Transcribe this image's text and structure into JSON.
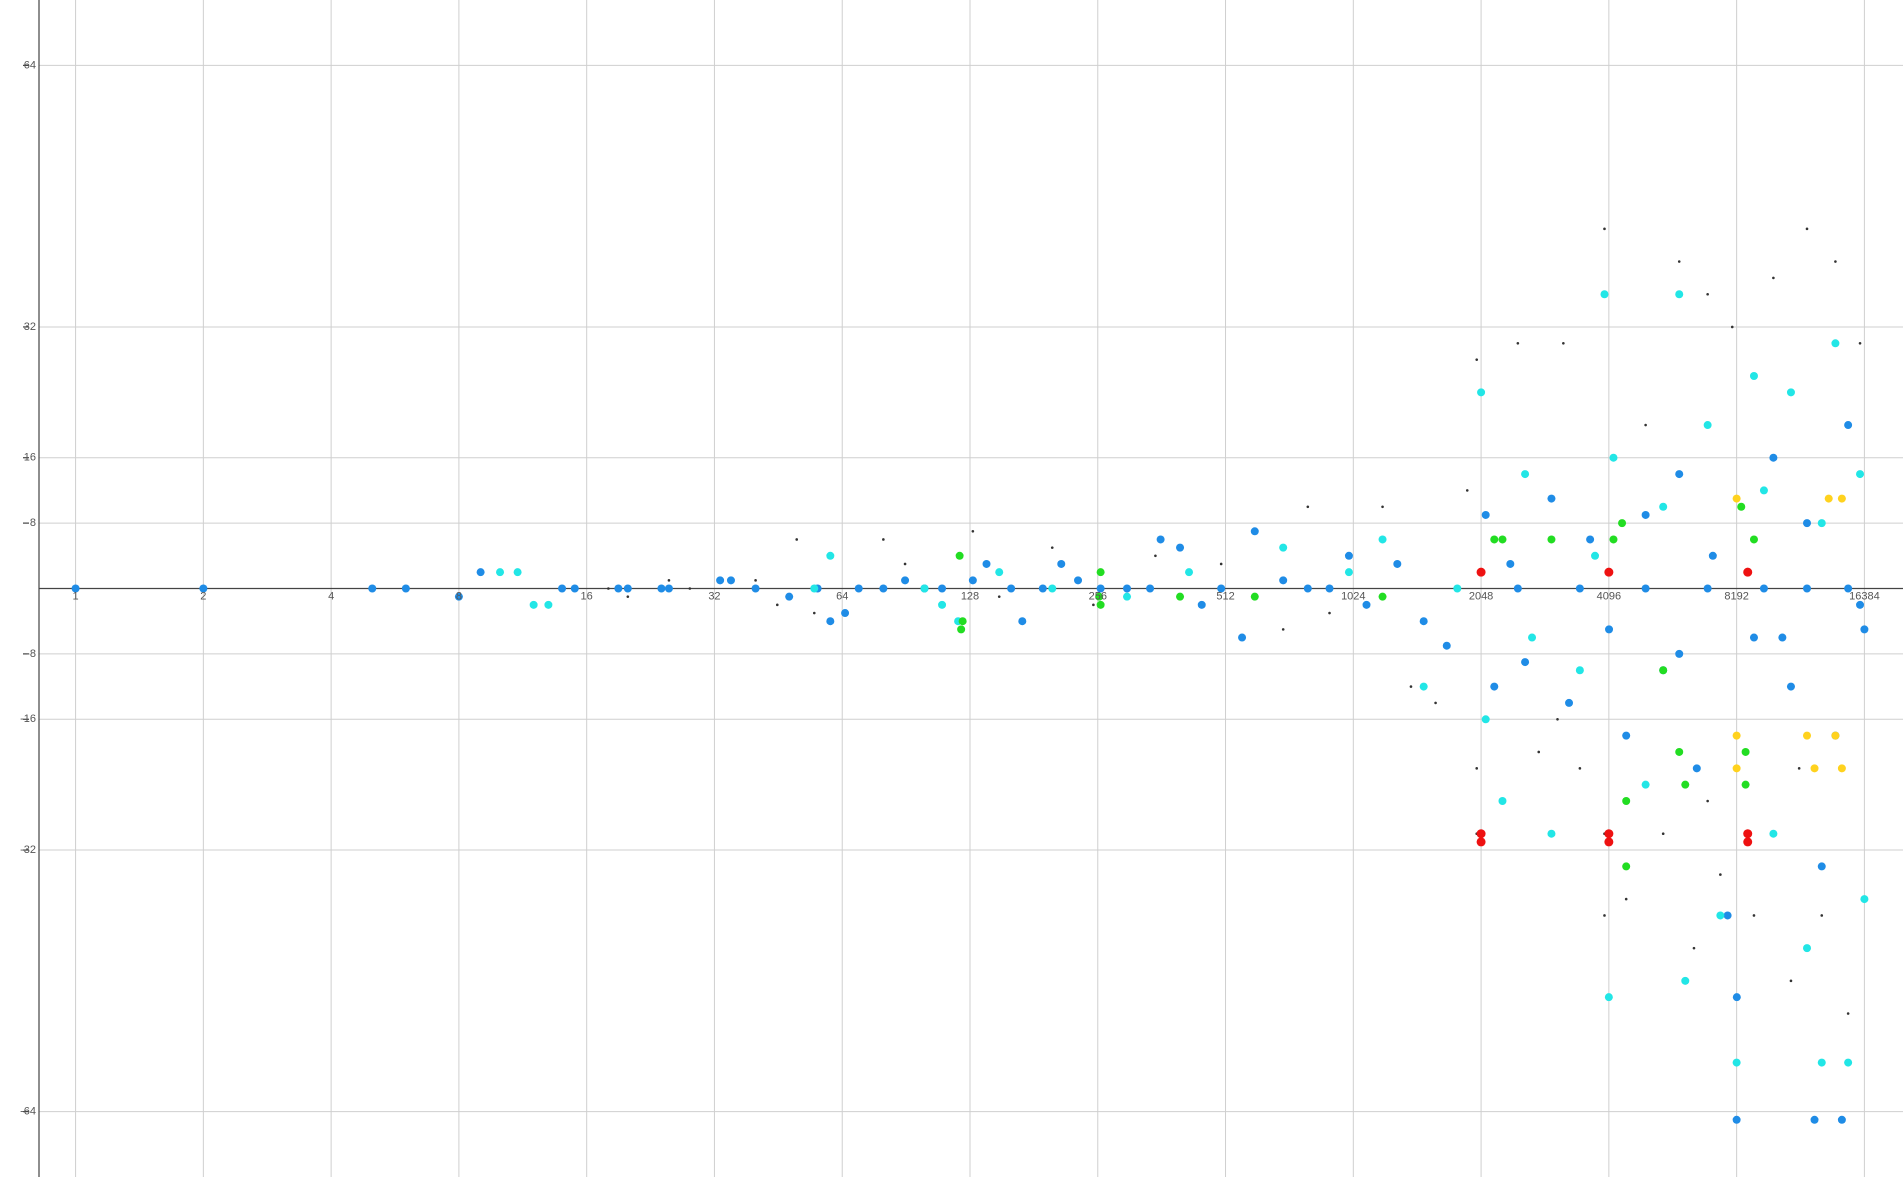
{
  "chart_data": {
    "type": "scatter",
    "x_scale": "log2",
    "grid": true,
    "xlim": [
      0.82,
      20200
    ],
    "ylim": [
      -72,
      72
    ],
    "xticks": [
      1,
      2,
      4,
      8,
      16,
      32,
      64,
      128,
      256,
      512,
      1024,
      2048,
      4096,
      8192,
      16384
    ],
    "yticks": [
      -64,
      -32,
      -16,
      -8,
      8,
      16,
      32,
      64
    ],
    "series": [
      {
        "color": "#333333",
        "marker_size": 1.3,
        "x": [
          18,
          20,
          25,
          28,
          40,
          45,
          50,
          55,
          60,
          80,
          90,
          130,
          150,
          200,
          250,
          350,
          500,
          700,
          800,
          900,
          1200,
          1400,
          1600,
          1900,
          2000,
          2000,
          2000,
          2500,
          2800,
          3200,
          3500,
          4000,
          4000,
          4000,
          4500,
          5000,
          5500,
          6000,
          6500,
          7000,
          7500,
          8000,
          9000,
          10000,
          11000,
          12000,
          13000,
          14000,
          15000,
          16000,
          7000,
          11500,
          3100
        ],
        "y": [
          0,
          -1,
          1,
          0,
          1,
          -2,
          6,
          -3,
          -4,
          6,
          3,
          7,
          -1,
          5,
          -2,
          4,
          3,
          -5,
          10,
          -3,
          10,
          -12,
          -14,
          12,
          28,
          -22,
          -30,
          30,
          -20,
          30,
          -22,
          44,
          -40,
          -30,
          -38,
          20,
          -30,
          40,
          -44,
          36,
          -35,
          32,
          -40,
          38,
          -48,
          44,
          -40,
          40,
          -52,
          30,
          -26,
          -22,
          -16
        ]
      },
      {
        "color": "#1f8ce6",
        "marker_size": 4,
        "x": [
          1,
          2,
          5,
          6,
          8,
          9,
          14,
          15,
          19,
          20,
          24,
          25,
          33,
          35,
          40,
          48,
          56,
          60,
          65,
          70,
          80,
          90,
          100,
          110,
          130,
          140,
          160,
          170,
          190,
          210,
          230,
          260,
          300,
          340,
          360,
          400,
          450,
          500,
          560,
          600,
          700,
          800,
          900,
          1000,
          1100,
          1300,
          1500,
          1700,
          2100,
          2200,
          2400,
          2600,
          3000,
          3300,
          3700,
          4100,
          4500,
          5000,
          5500,
          6000,
          6600,
          7200,
          7800,
          8200,
          9000,
          10000,
          11000,
          12000,
          13000,
          14000,
          15000,
          16000,
          16384,
          14500,
          12500,
          8192,
          2500,
          3500,
          5000,
          7000,
          9500,
          12000,
          15000,
          6000,
          10500
        ],
        "y": [
          0,
          0,
          0,
          0,
          -1,
          2,
          0,
          0,
          0,
          0,
          0,
          0,
          1,
          1,
          0,
          -1,
          0,
          -4,
          -3,
          0,
          0,
          1,
          0,
          0,
          1,
          3,
          0,
          -4,
          0,
          3,
          1,
          0,
          0,
          0,
          6,
          5,
          -2,
          0,
          -6,
          7,
          1,
          0,
          0,
          4,
          -2,
          3,
          -4,
          -7,
          9,
          -12,
          3,
          -9,
          11,
          -14,
          6,
          -5,
          -18,
          9,
          -10,
          14,
          -22,
          4,
          -40,
          -50,
          -6,
          16,
          -12,
          8,
          -34,
          -18,
          20,
          -2,
          -5,
          -65,
          -65,
          -65,
          0,
          0,
          0,
          0,
          0,
          0,
          0,
          -8,
          -6
        ]
      },
      {
        "color": "#22e6e6",
        "marker_size": 4,
        "x": [
          10,
          11,
          12,
          13,
          55,
          60,
          100,
          110,
          120,
          150,
          200,
          300,
          420,
          700,
          1000,
          1200,
          1500,
          2048,
          2100,
          2300,
          2600,
          3000,
          3500,
          4000,
          4096,
          4200,
          5000,
          6000,
          6200,
          7000,
          7500,
          8192,
          9000,
          10000,
          11000,
          12000,
          13000,
          14000,
          15000,
          16000,
          16384,
          13000,
          9500,
          5500,
          3800,
          2700,
          1800
        ],
        "y": [
          2,
          2,
          -2,
          -2,
          0,
          4,
          0,
          -2,
          -4,
          2,
          0,
          -1,
          2,
          5,
          2,
          6,
          -12,
          24,
          -16,
          -26,
          14,
          -30,
          -10,
          36,
          -50,
          16,
          -24,
          36,
          -48,
          20,
          -40,
          -58,
          26,
          -30,
          24,
          -44,
          -58,
          30,
          -58,
          14,
          -38,
          8,
          12,
          10,
          4,
          -6,
          0
        ]
      },
      {
        "color": "#22dd22",
        "marker_size": 4,
        "x": [
          121,
          123,
          122,
          260,
          258,
          260,
          400,
          600,
          1200,
          2200,
          2300,
          3000,
          4200,
          4400,
          4500,
          4500,
          5500,
          6000,
          6200,
          8400,
          8600,
          8600,
          9000
        ],
        "y": [
          4,
          -4,
          -5,
          2,
          -1,
          -2,
          -1,
          -1,
          -1,
          6,
          6,
          6,
          6,
          8,
          -26,
          -34,
          -10,
          -20,
          -24,
          10,
          -20,
          -24,
          6
        ]
      },
      {
        "color": "#ffd21e",
        "marker_size": 4,
        "x": [
          8192,
          8192,
          12000,
          12500,
          14000,
          14500,
          8192,
          13500,
          14500
        ],
        "y": [
          -18,
          -22,
          -18,
          -22,
          -18,
          -22,
          11,
          11,
          11
        ]
      },
      {
        "color": "#ee1111",
        "marker_size": 4.5,
        "x": [
          2048,
          2048,
          2048,
          4096,
          4096,
          4096,
          8700,
          8700,
          8700
        ],
        "y": [
          2,
          -30,
          -31,
          2,
          -30,
          -31,
          2,
          -30,
          -31
        ]
      }
    ]
  }
}
